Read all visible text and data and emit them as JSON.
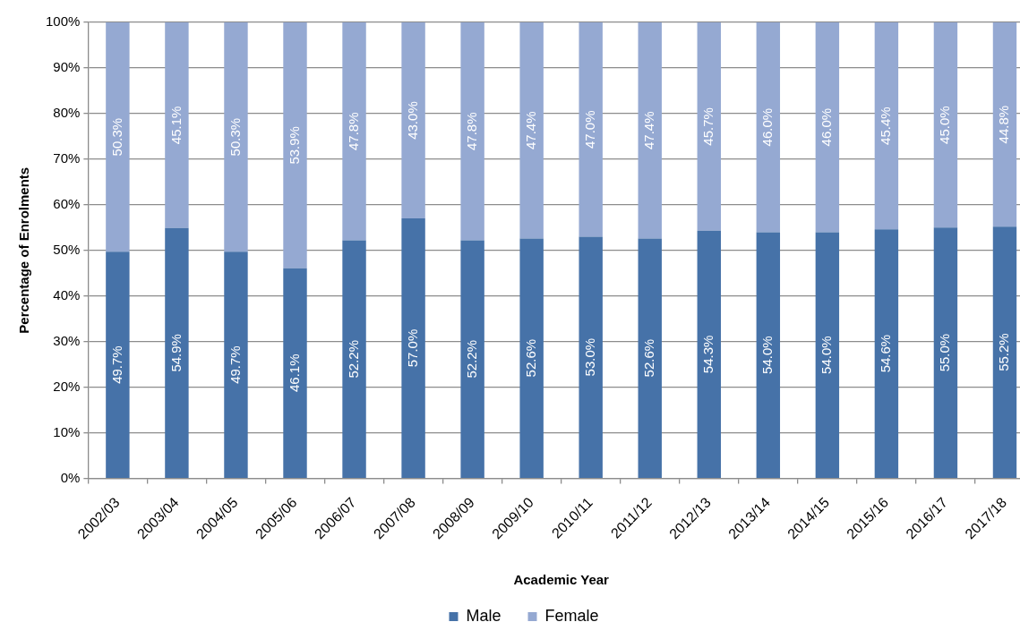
{
  "chart_data": {
    "type": "bar",
    "stacked": true,
    "xlabel": "Academic Year",
    "ylabel": "Percentage of Enrolments",
    "categories": [
      "2002/03",
      "2003/04",
      "2004/05",
      "2005/06",
      "2006/07",
      "2007/08",
      "2008/09",
      "2009/10",
      "2010/11",
      "2011/12",
      "2012/13",
      "2013/14",
      "2014/15",
      "2015/16",
      "2016/17",
      "2017/18"
    ],
    "series": [
      {
        "name": "Male",
        "color": "#4672a8",
        "values": [
          49.7,
          54.9,
          49.7,
          46.1,
          52.2,
          57.0,
          52.2,
          52.6,
          53.0,
          52.6,
          54.3,
          54.0,
          54.0,
          54.6,
          55.0,
          55.2
        ],
        "value_labels": [
          "49.7%",
          "54.9%",
          "49.7%",
          "46.1%",
          "52.2%",
          "57.0%",
          "52.2%",
          "52.6%",
          "53.0%",
          "52.6%",
          "54.3%",
          "54.0%",
          "54.0%",
          "54.6%",
          "55.0%",
          "55.2%"
        ]
      },
      {
        "name": "Female",
        "color": "#95a9d2",
        "values": [
          50.3,
          45.1,
          50.3,
          53.9,
          47.8,
          43.0,
          47.8,
          47.4,
          47.0,
          47.4,
          45.7,
          46.0,
          46.0,
          45.4,
          45.0,
          44.8
        ],
        "value_labels": [
          "50.3%",
          "45.1%",
          "50.3%",
          "53.9%",
          "47.8%",
          "43.0%",
          "47.8%",
          "47.4%",
          "47.0%",
          "47.4%",
          "45.7%",
          "46.0%",
          "46.0%",
          "45.4%",
          "45.0%",
          "44.8%"
        ]
      }
    ],
    "ylim": [
      0,
      100
    ],
    "yticks": [
      {
        "value": 0,
        "label": "0%"
      },
      {
        "value": 10,
        "label": "10%"
      },
      {
        "value": 20,
        "label": "20%"
      },
      {
        "value": 30,
        "label": "30%"
      },
      {
        "value": 40,
        "label": "40%"
      },
      {
        "value": 50,
        "label": "50%"
      },
      {
        "value": 60,
        "label": "60%"
      },
      {
        "value": 70,
        "label": "70%"
      },
      {
        "value": 80,
        "label": "80%"
      },
      {
        "value": 90,
        "label": "90%"
      },
      {
        "value": 100,
        "label": "100%"
      }
    ],
    "grid": "y",
    "legend": "bottom"
  }
}
